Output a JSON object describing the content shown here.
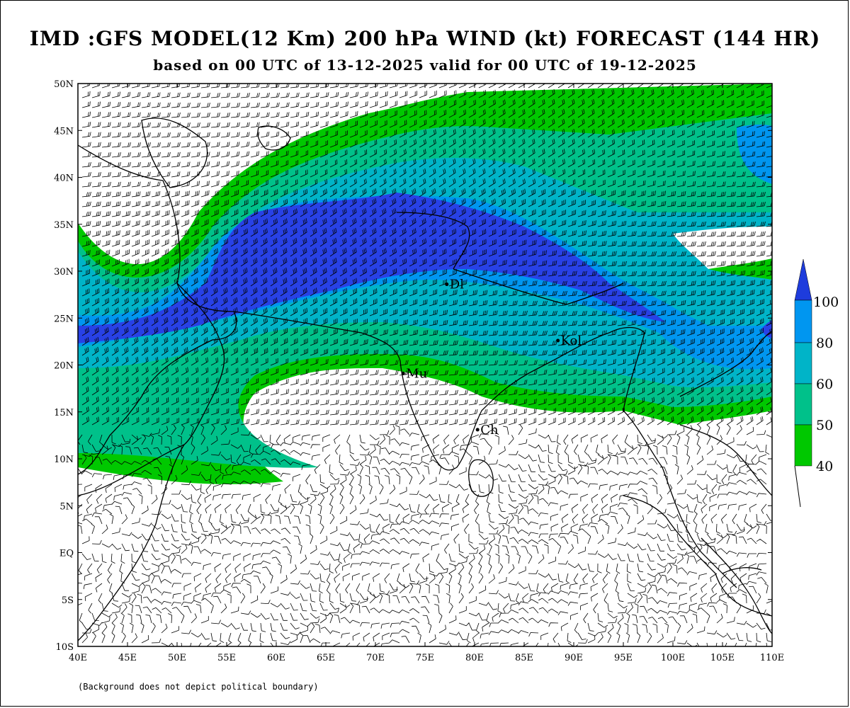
{
  "title": "IMD :GFS MODEL(12 Km) 200 hPa WIND (kt) FORECAST (144 HR)",
  "subtitle": "based on 00 UTC of 13-12-2025 valid for 00 UTC of 19-12-2025",
  "footnote": "(Background does not depict political boundary)",
  "map": {
    "lon_range": [
      40,
      110
    ],
    "lat_range": [
      -10,
      50
    ],
    "lon_ticks": [
      "40E",
      "45E",
      "50E",
      "55E",
      "60E",
      "65E",
      "70E",
      "75E",
      "80E",
      "85E",
      "90E",
      "95E",
      "100E",
      "105E",
      "110E"
    ],
    "lat_ticks": [
      "10S",
      "5S",
      "EQ",
      "5N",
      "10N",
      "15N",
      "20N",
      "25N",
      "30N",
      "35N",
      "40N",
      "45N",
      "50N"
    ],
    "station_labels": [
      {
        "name": "Mu",
        "lon": 72.8,
        "lat": 19.1
      },
      {
        "name": "Ch",
        "lon": 80.3,
        "lat": 13.1
      },
      {
        "name": "Dl",
        "lon": 77.2,
        "lat": 28.6
      },
      {
        "name": "Kol",
        "lon": 88.4,
        "lat": 22.6
      }
    ]
  },
  "legend": {
    "levels": [
      "40",
      "50",
      "60",
      "80",
      "100"
    ],
    "colors": {
      "40-50": "#00c800",
      "50-60": "#00c18a",
      "60-80": "#00b4c8",
      "80-100": "#0096f0",
      "100+": "#2841e6",
      "over100": "#1e3cdc"
    }
  }
}
